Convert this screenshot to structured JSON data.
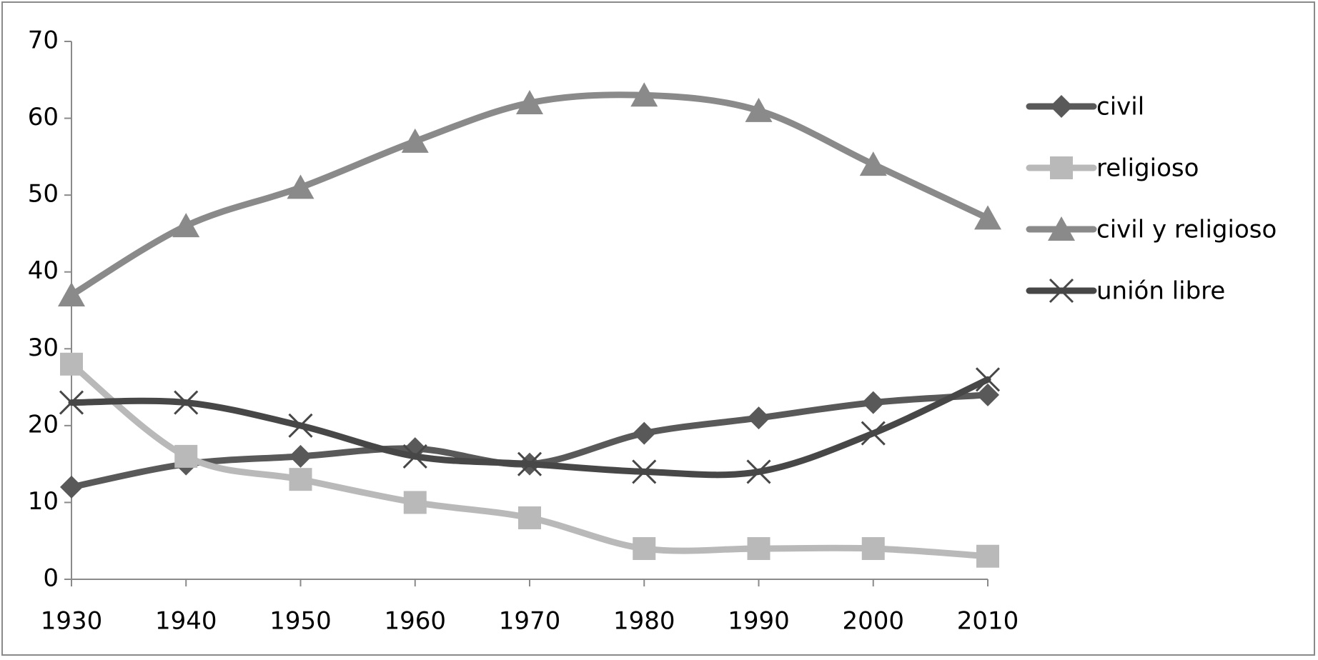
{
  "chart_data": {
    "type": "line",
    "x": [
      1930,
      1940,
      1950,
      1960,
      1970,
      1980,
      1990,
      2000,
      2010
    ],
    "xlim": [
      1930,
      2010
    ],
    "xticks": [
      1930,
      1940,
      1950,
      1960,
      1970,
      1980,
      1990,
      2000,
      2010
    ],
    "ylim": [
      0,
      70
    ],
    "yticks": [
      0,
      10,
      20,
      30,
      40,
      50,
      60,
      70
    ],
    "smooth": true,
    "legend": "right",
    "series": [
      {
        "name": "civil",
        "color": "#595959",
        "marker": "diamond",
        "values": [
          12,
          15,
          16,
          17,
          15,
          19,
          21,
          23,
          24
        ]
      },
      {
        "name": "religioso",
        "color": "#b9b9b9",
        "marker": "square",
        "values": [
          28,
          16,
          13,
          10,
          8,
          4,
          4,
          4,
          3
        ]
      },
      {
        "name": "civil y religioso",
        "color": "#8a8a8a",
        "marker": "triangle",
        "values": [
          37,
          46,
          51,
          57,
          62,
          63,
          61,
          54,
          47
        ]
      },
      {
        "name": "unión libre",
        "color": "#474747",
        "marker": "x",
        "values": [
          23,
          23,
          20,
          16,
          15,
          14,
          14,
          19,
          26
        ]
      }
    ]
  }
}
